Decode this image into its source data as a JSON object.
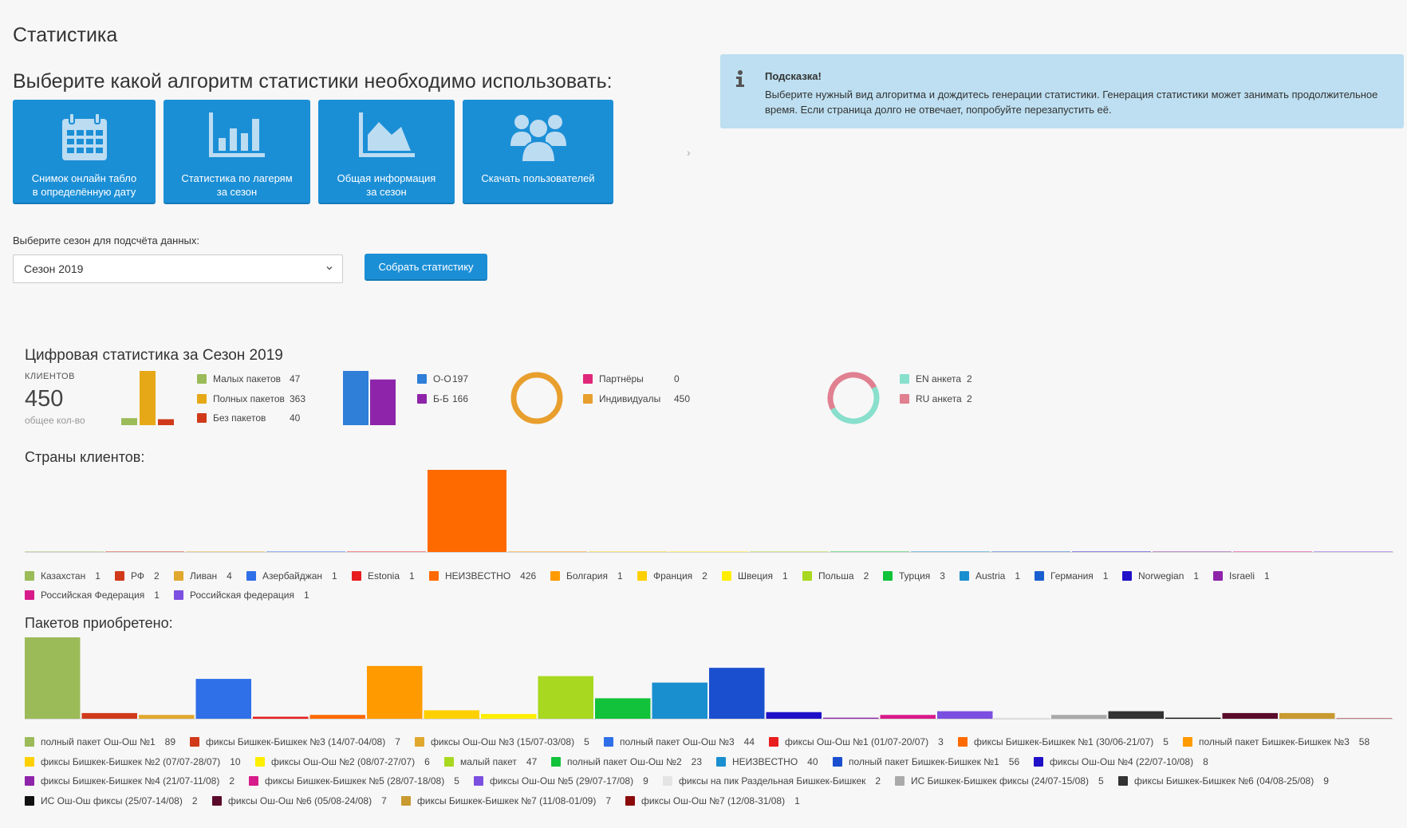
{
  "page": {
    "title": "Статистика",
    "algo_title": "Выберите какой алгоритм статистики необходимо использовать:"
  },
  "algo_buttons": [
    {
      "label": "Снимок онлайн табло\nв определённую дату",
      "icon": "calendar-icon"
    },
    {
      "label": "Статистика по лагерям\nза сезон",
      "icon": "bar-chart-icon"
    },
    {
      "label": "Общая информация\nза сезон",
      "icon": "area-chart-icon"
    },
    {
      "label": "Скачать пользователей",
      "icon": "users-icon"
    }
  ],
  "hint": {
    "icon": "info-icon",
    "title": "Подсказка!",
    "text": "Выберите нужный вид алгоритма и дождитесь генерации статистики. Генерация статистики может занимать продолжительное время. Если страница долго не отвечает, попробуйте перезапустить её."
  },
  "season": {
    "label": "Выберите сезон для подсчёта данных:",
    "selected": "Сезон 2019",
    "button": "Собрать статистику"
  },
  "digital": {
    "title": "Цифровая статистика за Сезон 2019",
    "clients_label": "КЛИЕНТОВ",
    "clients_value": "450",
    "clients_sub": "общее кол-во"
  },
  "colors": {
    "primary": "#1b8fd6",
    "hint_bg": "#bddff1"
  },
  "chart_data": [
    {
      "type": "bar",
      "id": "packets-summary",
      "categories": [
        "Малых пакетов",
        "Полных пакетов",
        "Без пакетов"
      ],
      "values": [
        47,
        363,
        40
      ],
      "colors": [
        "#9bbb59",
        "#e6a817",
        "#d03a1a"
      ]
    },
    {
      "type": "bar",
      "id": "oo-bb",
      "categories": [
        "О-О",
        "Б-Б"
      ],
      "values": [
        197,
        166
      ],
      "colors": [
        "#2f7ed8",
        "#8e24aa"
      ]
    },
    {
      "type": "pie",
      "id": "partners-individuals",
      "categories": [
        "Партнёры",
        "Индивидуалы"
      ],
      "values": [
        0,
        450
      ],
      "colors": [
        "#e0287a",
        "#e89f2e"
      ]
    },
    {
      "type": "pie",
      "id": "forms",
      "categories": [
        "EN анкета",
        "RU анкета"
      ],
      "values": [
        2,
        2
      ],
      "colors": [
        "#88dfcc",
        "#e08090"
      ]
    },
    {
      "type": "bar",
      "id": "countries",
      "title": "Страны клиентов:",
      "categories": [
        "Казахстан",
        "РФ",
        "Ливан",
        "Азербайджан",
        "Estonia",
        "НЕИЗВЕСТНО",
        "Болгария",
        "Франция",
        "Швеция",
        "Польша",
        "Турция",
        "Austria",
        "Германия",
        "Norwegian",
        "Israeli",
        "Российская Федерация",
        "Российская федерация"
      ],
      "values": [
        1,
        2,
        4,
        1,
        1,
        426,
        1,
        2,
        1,
        2,
        3,
        1,
        1,
        1,
        1,
        1,
        1
      ],
      "colors": [
        "#9bbb59",
        "#d03a1a",
        "#e0a82e",
        "#2f6fe8",
        "#e81e1e",
        "#ff6a00",
        "#ff9a00",
        "#ffd000",
        "#ffee00",
        "#a8d820",
        "#12c23a",
        "#1a8fd0",
        "#1a5fd0",
        "#2010c8",
        "#8e24aa",
        "#d81b8a",
        "#7b4fe0"
      ]
    },
    {
      "type": "bar",
      "id": "packets",
      "title": "Пакетов приобретено:",
      "categories": [
        "полный пакет Ош-Ош №1",
        "фиксы Бишкек-Бишкек №3 (14/07-04/08)",
        "фиксы Ош-Ош №3 (15/07-03/08)",
        "полный пакет Ош-Ош №3",
        "фиксы Ош-Ош №1 (01/07-20/07)",
        "фиксы Бишкек-Бишкек №1 (30/06-21/07)",
        "полный пакет Бишкек-Бишкек №3",
        "фиксы Бишкек-Бишкек №2 (07/07-28/07)",
        "фиксы Ош-Ош №2 (08/07-27/07)",
        "малый пакет",
        "полный пакет Ош-Ош №2",
        "НЕИЗВЕСТНО",
        "полный пакет Бишкек-Бишкек №1",
        "фиксы Ош-Ош №4 (22/07-10/08)",
        "фиксы Бишкек-Бишкек №4 (21/07-11/08)",
        "фиксы Бишкек-Бишкек №5 (28/07-18/08)",
        "фиксы Ош-Ош №5 (29/07-17/08)",
        "фиксы на пик Раздельная Бишкек-Бишкек",
        "ИС Бишкек-Бишкек фиксы (24/07-15/08)",
        "фиксы Бишкек-Бишкек №6 (04/08-25/08)",
        "ИС Ош-Ош фиксы (25/07-14/08)",
        "фиксы Ош-Ош №6 (05/08-24/08)",
        "фиксы Бишкек-Бишкек №7 (11/08-01/09)",
        "фиксы Ош-Ош №7 (12/08-31/08)"
      ],
      "values": [
        89,
        7,
        5,
        44,
        3,
        5,
        58,
        10,
        6,
        47,
        23,
        40,
        56,
        8,
        2,
        5,
        9,
        2,
        5,
        9,
        2,
        7,
        7,
        1
      ],
      "colors": [
        "#9bbb59",
        "#d03a1a",
        "#e0a82e",
        "#2f6fe8",
        "#e81e1e",
        "#ff6a00",
        "#ff9a00",
        "#ffd000",
        "#ffee00",
        "#a8d820",
        "#12c23a",
        "#1a8fd0",
        "#1a4fd0",
        "#2010c8",
        "#8e24aa",
        "#d81b8a",
        "#7b4fe0",
        "#e4e4e4",
        "#aaaaaa",
        "#333333",
        "#111111",
        "#5a0a2a",
        "#c89a30",
        "#8b0a0a"
      ]
    }
  ]
}
